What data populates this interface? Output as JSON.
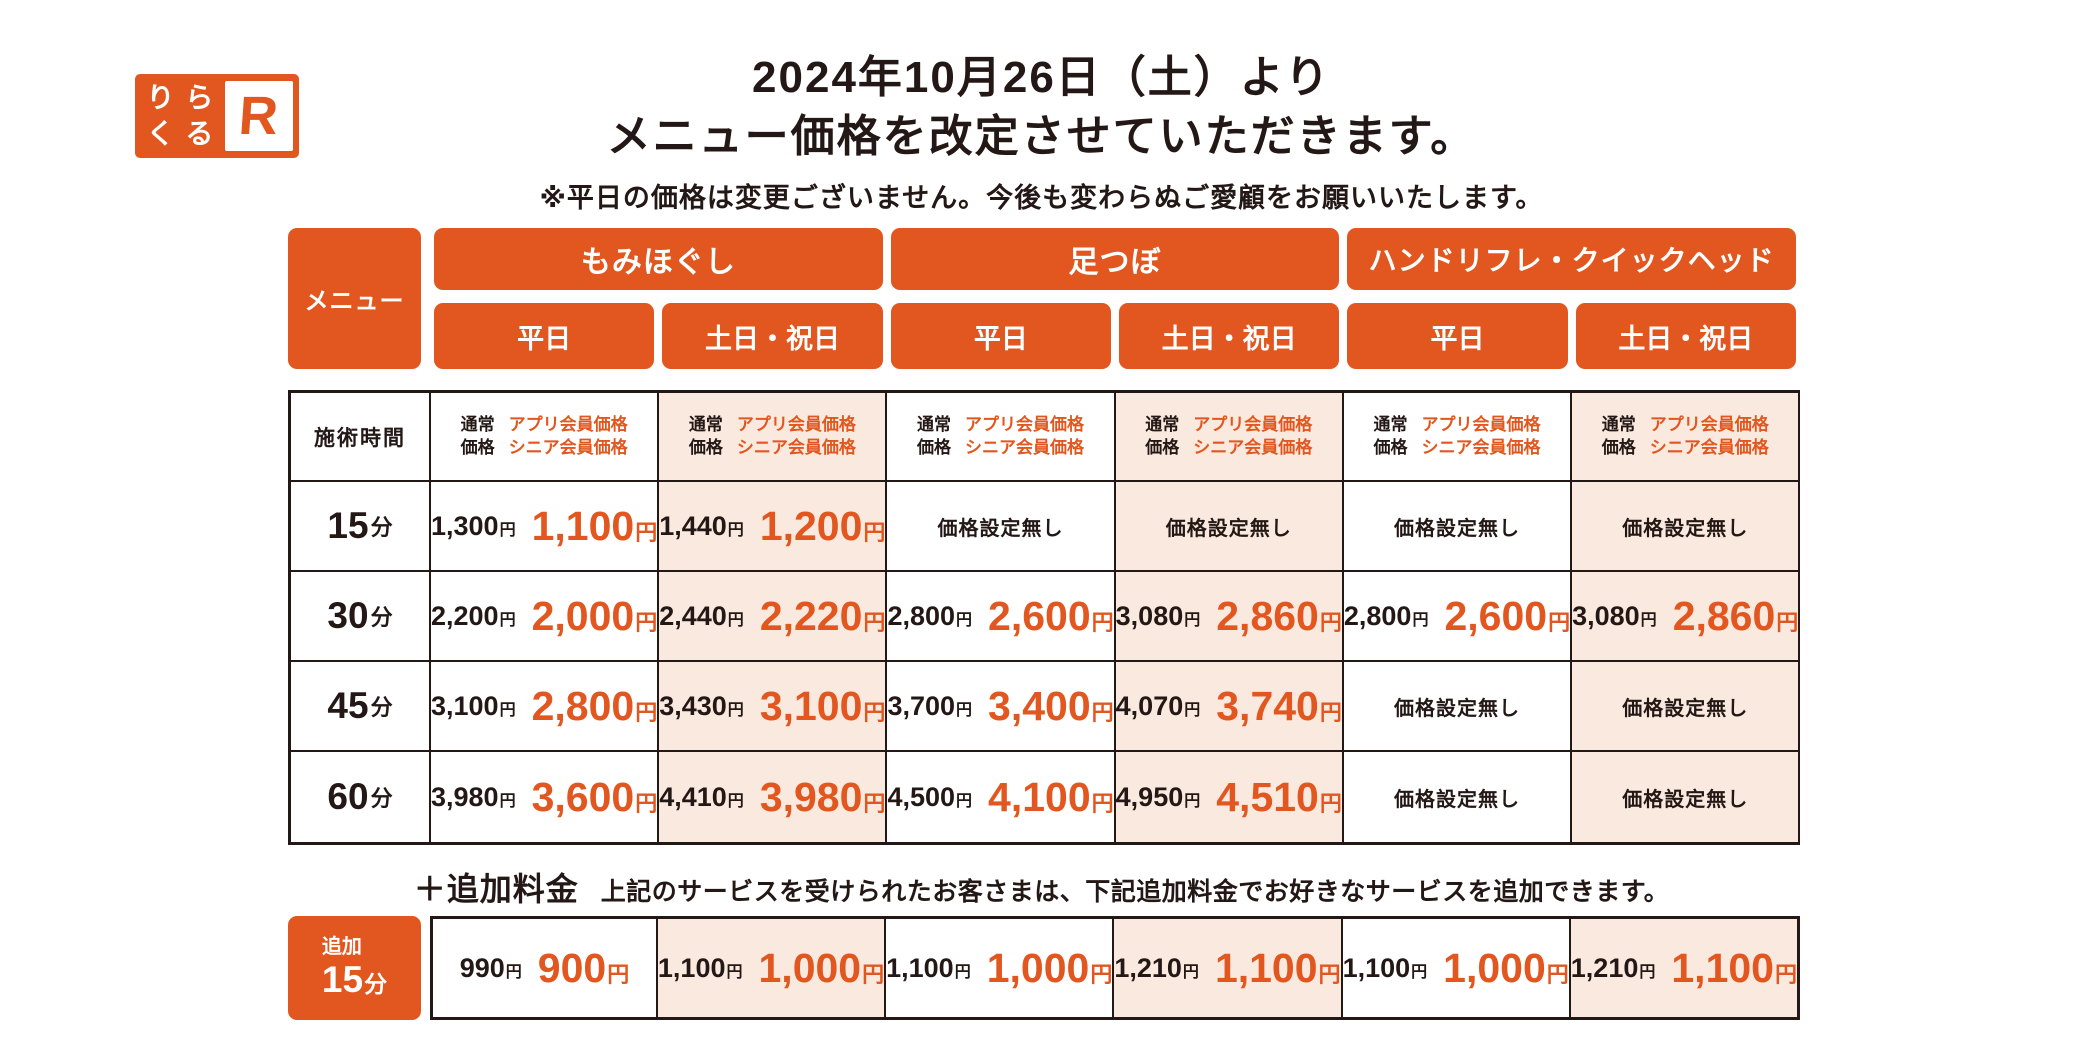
{
  "colors": {
    "orange": "#e2571f",
    "peach": "#fae9df",
    "ink": "#231815"
  },
  "logo": {
    "chars": [
      "り",
      "ら",
      "く",
      "る"
    ],
    "mark": "R"
  },
  "header": {
    "title_line1": "2024年10月26日（土）より",
    "title_line2": "メニュー価格を改定させていただきます。",
    "note": "※平日の価格は変更ございません。今後も変わらぬご愛顧をお願いいたします。"
  },
  "table": {
    "menu_label": "メニュー",
    "time_label": "施術時間",
    "groups": [
      "もみほぐし",
      "足つぼ",
      "ハンドリフレ・クイックヘッド"
    ],
    "day_headers": [
      "平日",
      "土日・祝日"
    ],
    "price_header": {
      "normal_line1": "通常",
      "normal_line2": "価格",
      "member_line1": "アプリ会員価格",
      "member_line2": "シニア会員価格"
    },
    "no_price": "価格設定無し",
    "yen": "円",
    "rows": [
      {
        "time": "15",
        "unit": "分",
        "cells": [
          {
            "normal": "1,300",
            "member": "1,100"
          },
          {
            "normal": "1,440",
            "member": "1,200"
          },
          {
            "noprice": true
          },
          {
            "noprice": true
          },
          {
            "noprice": true
          },
          {
            "noprice": true
          }
        ]
      },
      {
        "time": "30",
        "unit": "分",
        "cells": [
          {
            "normal": "2,200",
            "member": "2,000"
          },
          {
            "normal": "2,440",
            "member": "2,220"
          },
          {
            "normal": "2,800",
            "member": "2,600"
          },
          {
            "normal": "3,080",
            "member": "2,860"
          },
          {
            "normal": "2,800",
            "member": "2,600"
          },
          {
            "normal": "3,080",
            "member": "2,860"
          }
        ]
      },
      {
        "time": "45",
        "unit": "分",
        "cells": [
          {
            "normal": "3,100",
            "member": "2,800"
          },
          {
            "normal": "3,430",
            "member": "3,100"
          },
          {
            "normal": "3,700",
            "member": "3,400"
          },
          {
            "normal": "4,070",
            "member": "3,740"
          },
          {
            "noprice": true
          },
          {
            "noprice": true
          }
        ]
      },
      {
        "time": "60",
        "unit": "分",
        "cells": [
          {
            "normal": "3,980",
            "member": "3,600"
          },
          {
            "normal": "4,410",
            "member": "3,980"
          },
          {
            "normal": "4,500",
            "member": "4,100"
          },
          {
            "normal": "4,950",
            "member": "4,510"
          },
          {
            "noprice": true
          },
          {
            "noprice": true
          }
        ]
      }
    ]
  },
  "addon": {
    "heading": "＋追加料金",
    "description": "上記のサービスを受けられたお客さまは、下記追加料金でお好きなサービスを追加できます。",
    "label_top": "追加",
    "time": "15",
    "unit": "分",
    "cells": [
      {
        "normal": "990",
        "member": "900"
      },
      {
        "normal": "1,100",
        "member": "1,000"
      },
      {
        "normal": "1,100",
        "member": "1,000"
      },
      {
        "normal": "1,210",
        "member": "1,100"
      },
      {
        "normal": "1,100",
        "member": "1,000"
      },
      {
        "normal": "1,210",
        "member": "1,100"
      }
    ]
  }
}
